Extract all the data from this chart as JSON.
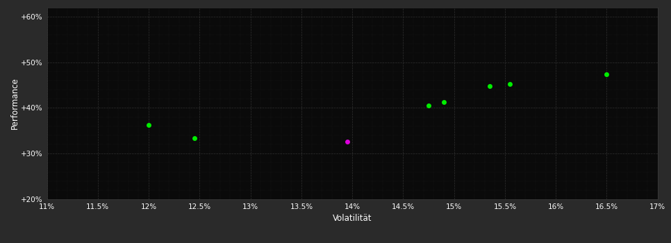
{
  "background_color": "#2a2a2a",
  "plot_bg_color": "#0a0a0a",
  "grid_color": "#3a3a3a",
  "text_color": "#ffffff",
  "xlabel": "Volatilität",
  "ylabel": "Performance",
  "xlim": [
    0.11,
    0.17
  ],
  "ylim": [
    0.2,
    0.62
  ],
  "xticks": [
    0.11,
    0.115,
    0.12,
    0.125,
    0.13,
    0.135,
    0.14,
    0.145,
    0.15,
    0.155,
    0.16,
    0.165,
    0.17
  ],
  "yticks": [
    0.2,
    0.3,
    0.4,
    0.5,
    0.6
  ],
  "ytick_labels": [
    "+20%",
    "+30%",
    "+40%",
    "+50%",
    "+60%"
  ],
  "xtick_labels": [
    "11%",
    "11.5%",
    "12%",
    "12.5%",
    "13%",
    "13.5%",
    "14%",
    "14.5%",
    "15%",
    "15.5%",
    "16%",
    "16.5%",
    "17%"
  ],
  "green_points": [
    [
      0.12,
      0.362
    ],
    [
      0.1245,
      0.334
    ],
    [
      0.1475,
      0.405
    ],
    [
      0.149,
      0.412
    ],
    [
      0.1535,
      0.448
    ],
    [
      0.1555,
      0.452
    ],
    [
      0.165,
      0.473
    ]
  ],
  "magenta_points": [
    [
      0.1395,
      0.326
    ]
  ],
  "green_color": "#00ee00",
  "magenta_color": "#dd00dd",
  "marker_size": 5
}
